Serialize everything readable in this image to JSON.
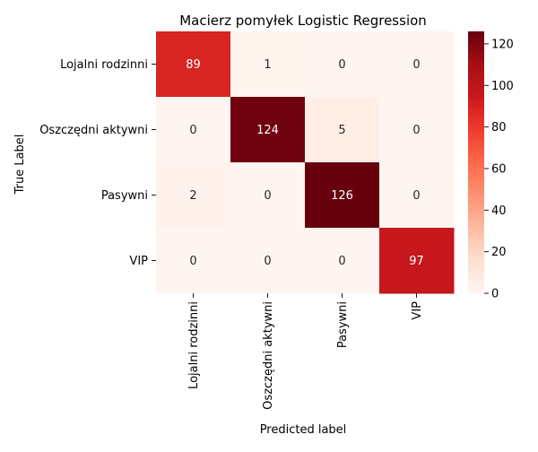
{
  "chart_data": {
    "type": "heatmap",
    "title": "Macierz pomyłek Logistic Regression",
    "xlabel": "Predicted label",
    "ylabel": "True Label",
    "row_labels": [
      "Lojalni rodzinni",
      "Oszczędni aktywni",
      "Pasywni",
      "VIP"
    ],
    "col_labels": [
      "Lojalni rodzinni",
      "Oszczędni aktywni",
      "Pasywni",
      "VIP"
    ],
    "values": [
      [
        89,
        1,
        0,
        0
      ],
      [
        0,
        124,
        5,
        0
      ],
      [
        2,
        0,
        126,
        0
      ],
      [
        0,
        0,
        0,
        97
      ]
    ],
    "colormap": "Reds",
    "colorbar_range": [
      0,
      126
    ],
    "colorbar_ticks": [
      0,
      20,
      40,
      60,
      80,
      100,
      120
    ],
    "light_text_color": "#ffffff",
    "dark_text_color": "#262626"
  }
}
